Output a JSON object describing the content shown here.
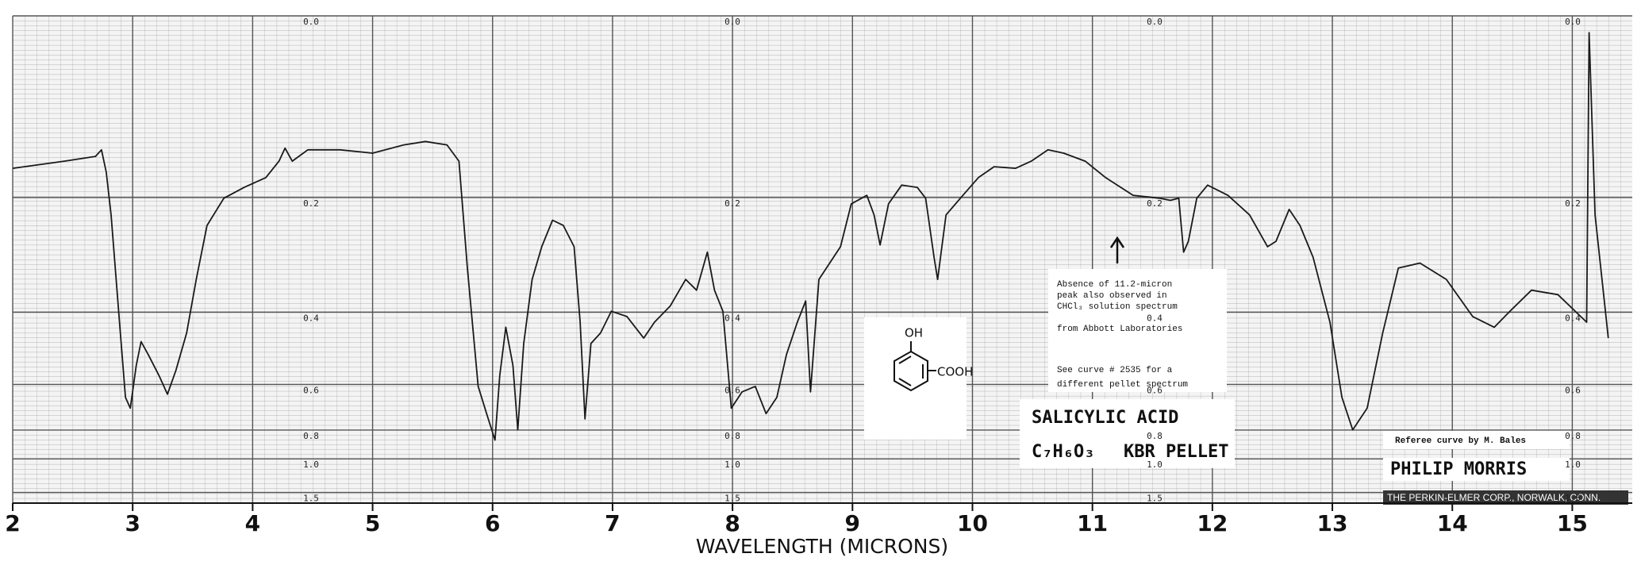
{
  "chart_data": {
    "type": "line",
    "xlabel": "WAVELENGTH (MICRONS)",
    "xlim": [
      2,
      15.5
    ],
    "xticks": [
      2,
      3,
      4,
      5,
      6,
      7,
      8,
      9,
      10,
      11,
      12,
      13,
      14,
      15
    ],
    "ylim": [
      0,
      2
    ],
    "yticks": [
      {
        "value": 0,
        "label": "0.0"
      },
      0.2,
      0.4,
      0.6,
      0.8,
      {
        "value": 1,
        "label": "1.0"
      },
      1.5
    ],
    "yscale": "absorbance",
    "grid": true,
    "color": "#1a1a1a",
    "x": [
      2.0,
      2.43,
      2.69,
      2.74,
      2.78,
      2.82,
      2.89,
      2.94,
      2.98,
      3.03,
      3.07,
      3.13,
      3.22,
      3.29,
      3.36,
      3.45,
      3.53,
      3.62,
      3.76,
      3.93,
      4.11,
      4.22,
      4.27,
      4.33,
      4.46,
      4.73,
      5.0,
      5.26,
      5.44,
      5.62,
      5.72,
      5.79,
      5.88,
      5.95,
      6.02,
      6.06,
      6.11,
      6.17,
      6.21,
      6.26,
      6.33,
      6.41,
      6.5,
      6.59,
      6.68,
      6.73,
      6.77,
      6.82,
      6.9,
      6.99,
      7.12,
      7.26,
      7.35,
      7.48,
      7.61,
      7.7,
      7.79,
      7.85,
      7.92,
      7.99,
      8.08,
      8.19,
      8.28,
      8.37,
      8.45,
      8.54,
      8.61,
      8.65,
      8.72,
      8.9,
      8.99,
      9.12,
      9.18,
      9.23,
      9.3,
      9.41,
      9.54,
      9.61,
      9.68,
      9.71,
      9.78,
      9.92,
      10.05,
      10.18,
      10.36,
      10.49,
      10.63,
      10.76,
      10.94,
      11.11,
      11.34,
      11.56,
      11.65,
      11.72,
      11.76,
      11.8,
      11.87,
      11.96,
      12.13,
      12.31,
      12.46,
      12.53,
      12.64,
      12.73,
      12.84,
      12.98,
      13.08,
      13.17,
      13.29,
      13.42,
      13.55,
      13.73,
      13.95,
      14.17,
      14.35,
      14.48,
      14.66,
      14.88,
      15.12,
      15.14,
      15.19,
      15.3
    ],
    "values": [
      0.161,
      0.152,
      0.146,
      0.138,
      0.166,
      0.225,
      0.423,
      0.648,
      0.693,
      0.538,
      0.471,
      0.506,
      0.57,
      0.636,
      0.554,
      0.449,
      0.333,
      0.241,
      0.201,
      0.186,
      0.173,
      0.152,
      0.136,
      0.152,
      0.138,
      0.138,
      0.142,
      0.132,
      0.128,
      0.132,
      0.152,
      0.312,
      0.607,
      0.717,
      0.86,
      0.57,
      0.435,
      0.538,
      0.799,
      0.476,
      0.333,
      0.275,
      0.233,
      0.241,
      0.275,
      0.423,
      0.742,
      0.476,
      0.449,
      0.398,
      0.41,
      0.462,
      0.423,
      0.387,
      0.333,
      0.354,
      0.284,
      0.354,
      0.398,
      0.693,
      0.627,
      0.607,
      0.717,
      0.648,
      0.506,
      0.423,
      0.376,
      0.627,
      0.333,
      0.275,
      0.209,
      0.197,
      0.225,
      0.272,
      0.209,
      0.183,
      0.186,
      0.201,
      0.293,
      0.333,
      0.225,
      0.197,
      0.173,
      0.159,
      0.161,
      0.152,
      0.138,
      0.142,
      0.152,
      0.173,
      0.197,
      0.201,
      0.204,
      0.201,
      0.284,
      0.266,
      0.201,
      0.183,
      0.197,
      0.225,
      0.275,
      0.266,
      0.217,
      0.241,
      0.293,
      0.423,
      0.648,
      0.799,
      0.693,
      0.449,
      0.312,
      0.303,
      0.333,
      0.41,
      0.435,
      0.398,
      0.354,
      0.363,
      0.423,
      0.015,
      0.225,
      0.462
    ],
    "annotations": {
      "note_lines": [
        "Absence of 11.2-micron",
        "peak also observed in",
        "CHCl₃ solution spectrum"
      ],
      "source": "from Abbott Laboratories",
      "see_lines": [
        "See curve # 2535 for a",
        "different pellet spectrum"
      ],
      "compound": "SALICYLIC ACID",
      "formula": "C₇H₆O₃",
      "sample": "KBR PELLET",
      "structure_oh": "OH",
      "structure_cooh": "COOH",
      "referee": "Referee curve by M. Bales",
      "owner": "PHILIP MORRIS",
      "maker": "THE PERKIN-ELMER CORP., NORWALK, CONN."
    }
  }
}
